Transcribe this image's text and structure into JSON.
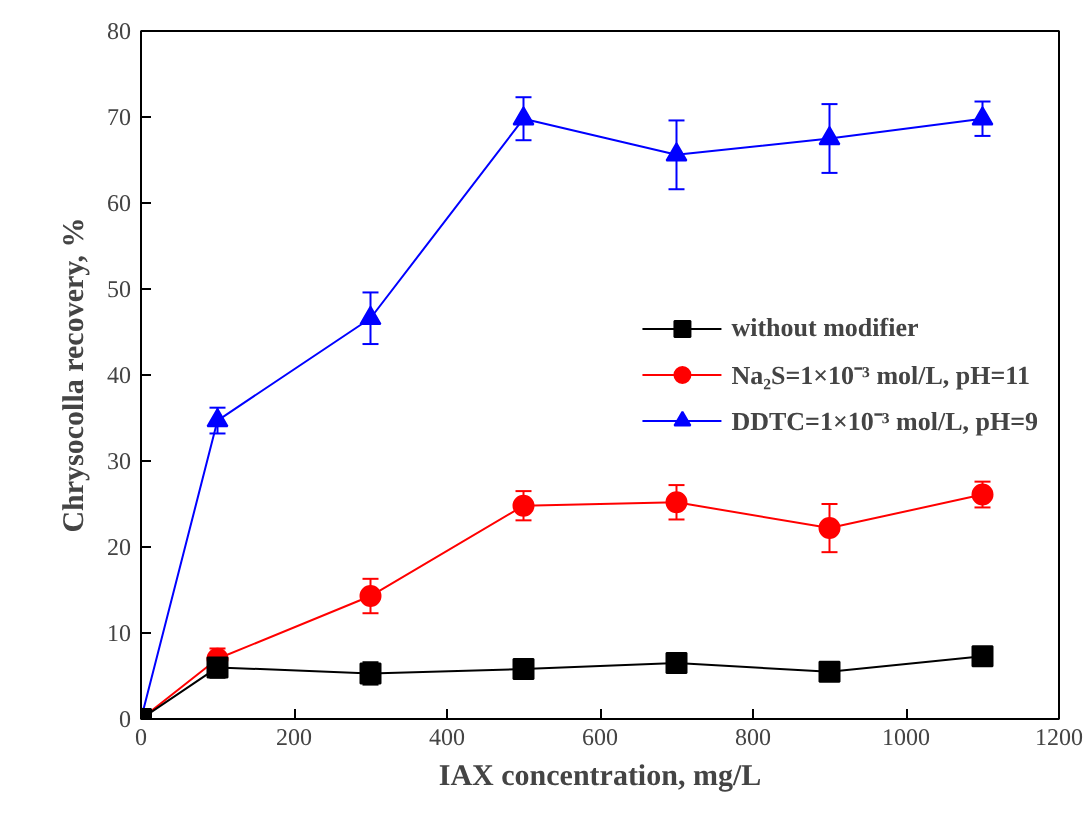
{
  "chart_data": {
    "type": "line",
    "xlabel": "IAX concentration, mg/L",
    "ylabel": "Chrysocolla recovery, %",
    "x": [
      0,
      100,
      300,
      500,
      700,
      900,
      1100
    ],
    "xlim": [
      0,
      1200
    ],
    "xticks": [
      0,
      200,
      400,
      600,
      800,
      1000,
      1200
    ],
    "ylim": [
      0,
      80
    ],
    "yticks": [
      0,
      10,
      20,
      30,
      40,
      50,
      60,
      70,
      80
    ],
    "grid": false,
    "legend": "right",
    "line_style": "solid",
    "series": [
      {
        "name": "without modifier",
        "color": "#000000",
        "marker": "square",
        "values": [
          0,
          6,
          5.3,
          5.8,
          6.5,
          5.5,
          7.3
        ],
        "errors": [
          null,
          1.2,
          1.3,
          null,
          null,
          null,
          null
        ]
      },
      {
        "name": "Na₂S=1×10⁻³ mol/L, pH=11",
        "color": "#ff0000",
        "marker": "circle",
        "values": [
          0,
          7,
          14.3,
          24.8,
          25.2,
          22.2,
          26.1
        ],
        "errors": [
          null,
          1.2,
          2,
          1.7,
          2,
          2.8,
          1.5
        ]
      },
      {
        "name": "DDTC=1×10⁻³ mol/L, pH=9",
        "color": "#0000ff",
        "marker": "triangle",
        "values": [
          0,
          34.7,
          46.6,
          69.8,
          65.6,
          67.5,
          69.8
        ],
        "errors": [
          null,
          1.5,
          3,
          2.5,
          4,
          4,
          2
        ]
      }
    ]
  }
}
